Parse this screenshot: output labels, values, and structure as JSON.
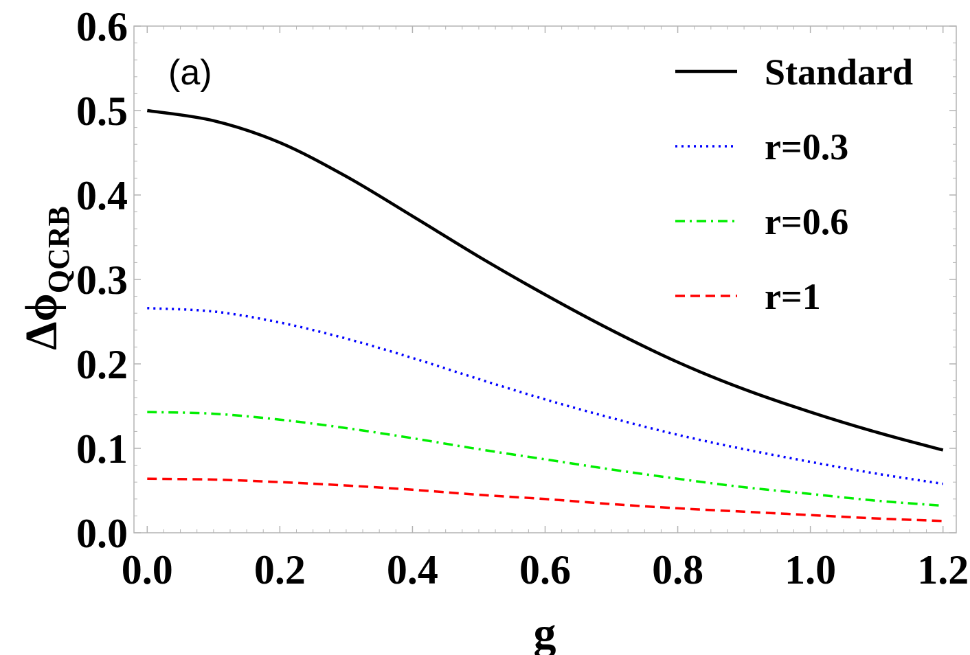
{
  "chart_data": {
    "type": "line",
    "panel_label": "(a)",
    "xlabel": "g",
    "ylabel": {
      "main": "Δϕ",
      "subscript": "QCRB"
    },
    "xlim": [
      -0.02,
      1.22
    ],
    "ylim": [
      0.0,
      0.6
    ],
    "xticks": [
      "0.0",
      "0.2",
      "0.4",
      "0.6",
      "0.8",
      "1.0",
      "1.2"
    ],
    "yticks": [
      "0.0",
      "0.1",
      "0.2",
      "0.3",
      "0.4",
      "0.5",
      "0.6"
    ],
    "grid": false,
    "legend_position": "top-right",
    "x": [
      0.0,
      0.1,
      0.2,
      0.3,
      0.4,
      0.5,
      0.6,
      0.7,
      0.8,
      0.9,
      1.0,
      1.1,
      1.2
    ],
    "series": [
      {
        "name": "Standard",
        "color": "#000000",
        "dash": "solid",
        "values": [
          0.5,
          0.488,
          0.462,
          0.422,
          0.375,
          0.327,
          0.282,
          0.24,
          0.202,
          0.17,
          0.143,
          0.119,
          0.098
        ]
      },
      {
        "name": "r=0.3",
        "color": "#0000ff",
        "dash": "dotted",
        "values": [
          0.266,
          0.262,
          0.249,
          0.23,
          0.207,
          0.182,
          0.158,
          0.136,
          0.116,
          0.099,
          0.084,
          0.07,
          0.058
        ]
      },
      {
        "name": "r=0.6",
        "color": "#00ee00",
        "dash": "dashdot",
        "values": [
          0.143,
          0.141,
          0.134,
          0.124,
          0.112,
          0.099,
          0.087,
          0.075,
          0.064,
          0.054,
          0.046,
          0.038,
          0.032
        ]
      },
      {
        "name": "r=1",
        "color": "#ff0000",
        "dash": "dashed",
        "values": [
          0.064,
          0.063,
          0.06,
          0.056,
          0.051,
          0.045,
          0.04,
          0.034,
          0.029,
          0.025,
          0.021,
          0.017,
          0.014
        ]
      }
    ]
  }
}
